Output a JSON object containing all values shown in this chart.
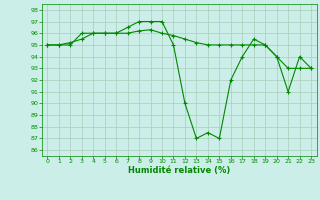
{
  "xlabel": "Humidité relative (%)",
  "background_color": "#cceee8",
  "grid_color": "#aaccbb",
  "line_color": "#008800",
  "ylim": [
    85.5,
    98.5
  ],
  "xlim": [
    -0.5,
    23.5
  ],
  "yticks": [
    86,
    87,
    88,
    89,
    90,
    91,
    92,
    93,
    94,
    95,
    96,
    97,
    98
  ],
  "xticks": [
    0,
    1,
    2,
    3,
    4,
    5,
    6,
    7,
    8,
    9,
    10,
    11,
    12,
    13,
    14,
    15,
    16,
    17,
    18,
    19,
    20,
    21,
    22,
    23
  ],
  "series1": [
    95,
    95,
    95,
    96,
    96,
    96,
    96,
    96.5,
    97,
    97,
    97,
    95,
    90,
    87,
    87.5,
    87,
    92,
    94,
    95.5,
    95,
    94,
    91,
    94,
    93
  ],
  "series2": [
    95,
    95,
    95.2,
    95.5,
    96,
    96,
    96,
    96,
    96.2,
    96.3,
    96,
    95.8,
    95.5,
    95.2,
    95,
    95,
    95,
    95,
    95,
    95,
    94,
    93,
    93,
    93
  ]
}
